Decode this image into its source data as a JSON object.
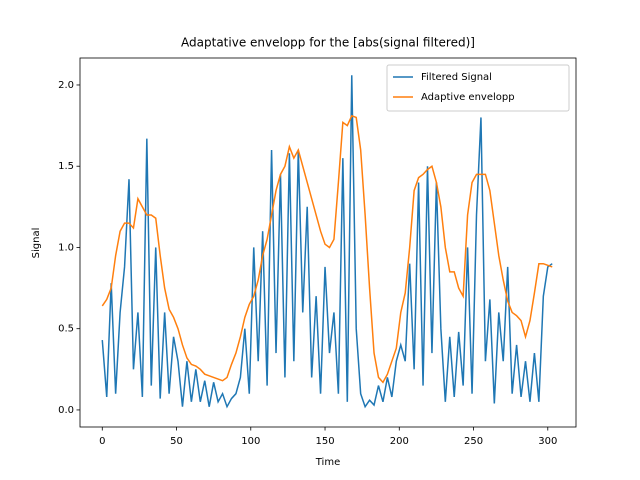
{
  "chart_data": {
    "type": "line",
    "title": "Adaptative envelopp for the [abs(signal filtered)]",
    "xlabel": "Time",
    "ylabel": "Signal",
    "x": [
      0,
      3,
      6,
      9,
      12,
      15,
      18,
      21,
      24,
      27,
      30,
      33,
      36,
      39,
      42,
      45,
      48,
      51,
      54,
      57,
      60,
      63,
      66,
      69,
      72,
      75,
      78,
      81,
      84,
      87,
      90,
      93,
      96,
      99,
      102,
      105,
      108,
      111,
      114,
      117,
      120,
      123,
      126,
      129,
      132,
      135,
      138,
      141,
      144,
      147,
      150,
      153,
      156,
      159,
      162,
      165,
      168,
      171,
      174,
      177,
      180,
      183,
      186,
      189,
      192,
      195,
      198,
      201,
      204,
      207,
      210,
      213,
      216,
      219,
      222,
      225,
      228,
      231,
      234,
      237,
      240,
      243,
      246,
      249,
      252,
      255,
      258,
      261,
      264,
      267,
      270,
      273,
      276,
      279,
      282,
      285,
      288,
      291,
      294,
      297,
      300,
      303
    ],
    "series": [
      {
        "name": "Filtered Signal",
        "color": "#1f77b4",
        "values": [
          0.43,
          0.08,
          0.78,
          0.1,
          0.6,
          0.88,
          1.42,
          0.25,
          0.6,
          0.08,
          1.67,
          0.15,
          1.0,
          0.07,
          0.6,
          0.1,
          0.45,
          0.3,
          0.02,
          0.3,
          0.05,
          0.25,
          0.05,
          0.18,
          0.02,
          0.17,
          0.05,
          0.1,
          0.02,
          0.07,
          0.1,
          0.2,
          0.5,
          0.1,
          1.0,
          0.3,
          1.1,
          0.15,
          1.6,
          0.35,
          1.45,
          0.2,
          1.58,
          0.3,
          1.6,
          0.6,
          1.25,
          0.2,
          0.7,
          0.1,
          0.88,
          0.35,
          0.6,
          0.1,
          1.55,
          0.05,
          2.06,
          0.5,
          0.1,
          0.02,
          0.06,
          0.03,
          0.15,
          0.05,
          0.2,
          0.08,
          0.3,
          0.4,
          0.3,
          0.9,
          0.25,
          1.4,
          0.15,
          1.5,
          0.35,
          1.4,
          0.5,
          0.05,
          0.45,
          0.08,
          0.48,
          0.15,
          1.0,
          0.1,
          1.2,
          1.8,
          0.3,
          0.68,
          0.04,
          0.6,
          0.3,
          0.88,
          0.1,
          0.4,
          0.08,
          0.3,
          0.05,
          0.35,
          0.05,
          0.7,
          0.88,
          0.9
        ]
      },
      {
        "name": "Adaptive envelopp",
        "color": "#ff7f0e",
        "values": [
          0.64,
          0.68,
          0.75,
          0.95,
          1.1,
          1.15,
          1.15,
          1.12,
          1.3,
          1.25,
          1.2,
          1.2,
          1.18,
          0.95,
          0.75,
          0.62,
          0.57,
          0.5,
          0.4,
          0.32,
          0.28,
          0.27,
          0.25,
          0.22,
          0.21,
          0.2,
          0.19,
          0.18,
          0.2,
          0.28,
          0.35,
          0.45,
          0.57,
          0.65,
          0.7,
          0.8,
          0.95,
          1.05,
          1.2,
          1.35,
          1.45,
          1.5,
          1.62,
          1.55,
          1.6,
          1.5,
          1.4,
          1.3,
          1.2,
          1.1,
          1.02,
          1.0,
          1.05,
          1.4,
          1.77,
          1.75,
          1.81,
          1.8,
          1.6,
          1.2,
          0.75,
          0.35,
          0.2,
          0.17,
          0.22,
          0.3,
          0.38,
          0.6,
          0.72,
          1.0,
          1.35,
          1.43,
          1.45,
          1.48,
          1.5,
          1.4,
          1.25,
          1.0,
          0.85,
          0.85,
          0.75,
          0.7,
          1.2,
          1.4,
          1.45,
          1.45,
          1.45,
          1.35,
          1.15,
          0.95,
          0.8,
          0.67,
          0.6,
          0.58,
          0.55,
          0.45,
          0.55,
          0.72,
          0.9,
          0.9,
          0.89,
          0.88
        ]
      }
    ],
    "xlim": [
      -15,
      319
    ],
    "ylim": [
      -0.105,
      2.166
    ],
    "xticks": [
      0,
      50,
      100,
      150,
      200,
      250,
      300
    ],
    "yticks": [
      {
        "value": 0,
        "label": "0.0"
      },
      {
        "value": 0.5,
        "label": "0.5"
      },
      {
        "value": 1,
        "label": "1.0"
      },
      {
        "value": 1.5,
        "label": "1.5"
      },
      {
        "value": 2,
        "label": "2.0"
      }
    ],
    "legend": "upper right"
  }
}
